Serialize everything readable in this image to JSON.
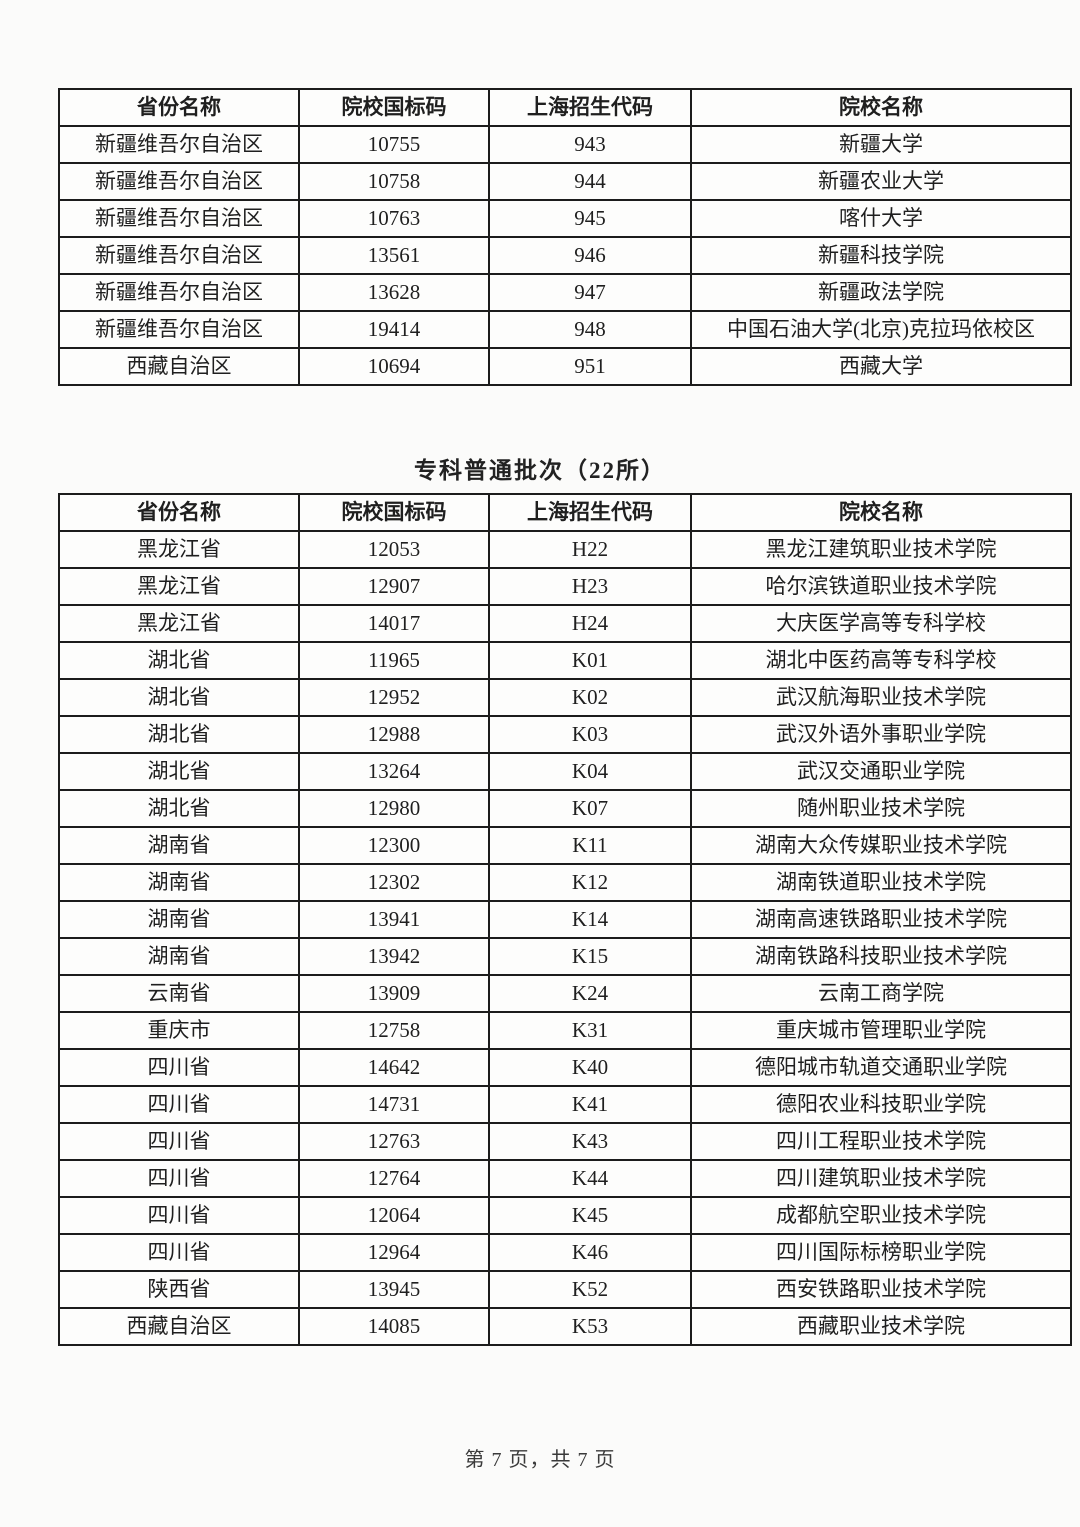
{
  "document": {
    "section_title": "专科普通批次（22所）",
    "footer_text": "第 7 页，共 7 页",
    "columns": [
      "省份名称",
      "院校国标码",
      "上海招生代码",
      "院校名称"
    ],
    "colors": {
      "border": "#1c1c1c",
      "text": "#1f1f1f",
      "background": "#fbfbfa"
    },
    "table1_rows": [
      [
        "新疆维吾尔自治区",
        "10755",
        "943",
        "新疆大学"
      ],
      [
        "新疆维吾尔自治区",
        "10758",
        "944",
        "新疆农业大学"
      ],
      [
        "新疆维吾尔自治区",
        "10763",
        "945",
        "喀什大学"
      ],
      [
        "新疆维吾尔自治区",
        "13561",
        "946",
        "新疆科技学院"
      ],
      [
        "新疆维吾尔自治区",
        "13628",
        "947",
        "新疆政法学院"
      ],
      [
        "新疆维吾尔自治区",
        "19414",
        "948",
        "中国石油大学(北京)克拉玛依校区"
      ],
      [
        "西藏自治区",
        "10694",
        "951",
        "西藏大学"
      ]
    ],
    "table2_rows": [
      [
        "黑龙江省",
        "12053",
        "H22",
        "黑龙江建筑职业技术学院"
      ],
      [
        "黑龙江省",
        "12907",
        "H23",
        "哈尔滨铁道职业技术学院"
      ],
      [
        "黑龙江省",
        "14017",
        "H24",
        "大庆医学高等专科学校"
      ],
      [
        "湖北省",
        "11965",
        "K01",
        "湖北中医药高等专科学校"
      ],
      [
        "湖北省",
        "12952",
        "K02",
        "武汉航海职业技术学院"
      ],
      [
        "湖北省",
        "12988",
        "K03",
        "武汉外语外事职业学院"
      ],
      [
        "湖北省",
        "13264",
        "K04",
        "武汉交通职业学院"
      ],
      [
        "湖北省",
        "12980",
        "K07",
        "随州职业技术学院"
      ],
      [
        "湖南省",
        "12300",
        "K11",
        "湖南大众传媒职业技术学院"
      ],
      [
        "湖南省",
        "12302",
        "K12",
        "湖南铁道职业技术学院"
      ],
      [
        "湖南省",
        "13941",
        "K14",
        "湖南高速铁路职业技术学院"
      ],
      [
        "湖南省",
        "13942",
        "K15",
        "湖南铁路科技职业技术学院"
      ],
      [
        "云南省",
        "13909",
        "K24",
        "云南工商学院"
      ],
      [
        "重庆市",
        "12758",
        "K31",
        "重庆城市管理职业学院"
      ],
      [
        "四川省",
        "14642",
        "K40",
        "德阳城市轨道交通职业学院"
      ],
      [
        "四川省",
        "14731",
        "K41",
        "德阳农业科技职业学院"
      ],
      [
        "四川省",
        "12763",
        "K43",
        "四川工程职业技术学院"
      ],
      [
        "四川省",
        "12764",
        "K44",
        "四川建筑职业技术学院"
      ],
      [
        "四川省",
        "12064",
        "K45",
        "成都航空职业技术学院"
      ],
      [
        "四川省",
        "12964",
        "K46",
        "四川国际标榜职业学院"
      ],
      [
        "陕西省",
        "13945",
        "K52",
        "西安铁路职业技术学院"
      ],
      [
        "西藏自治区",
        "14085",
        "K53",
        "西藏职业技术学院"
      ]
    ]
  }
}
